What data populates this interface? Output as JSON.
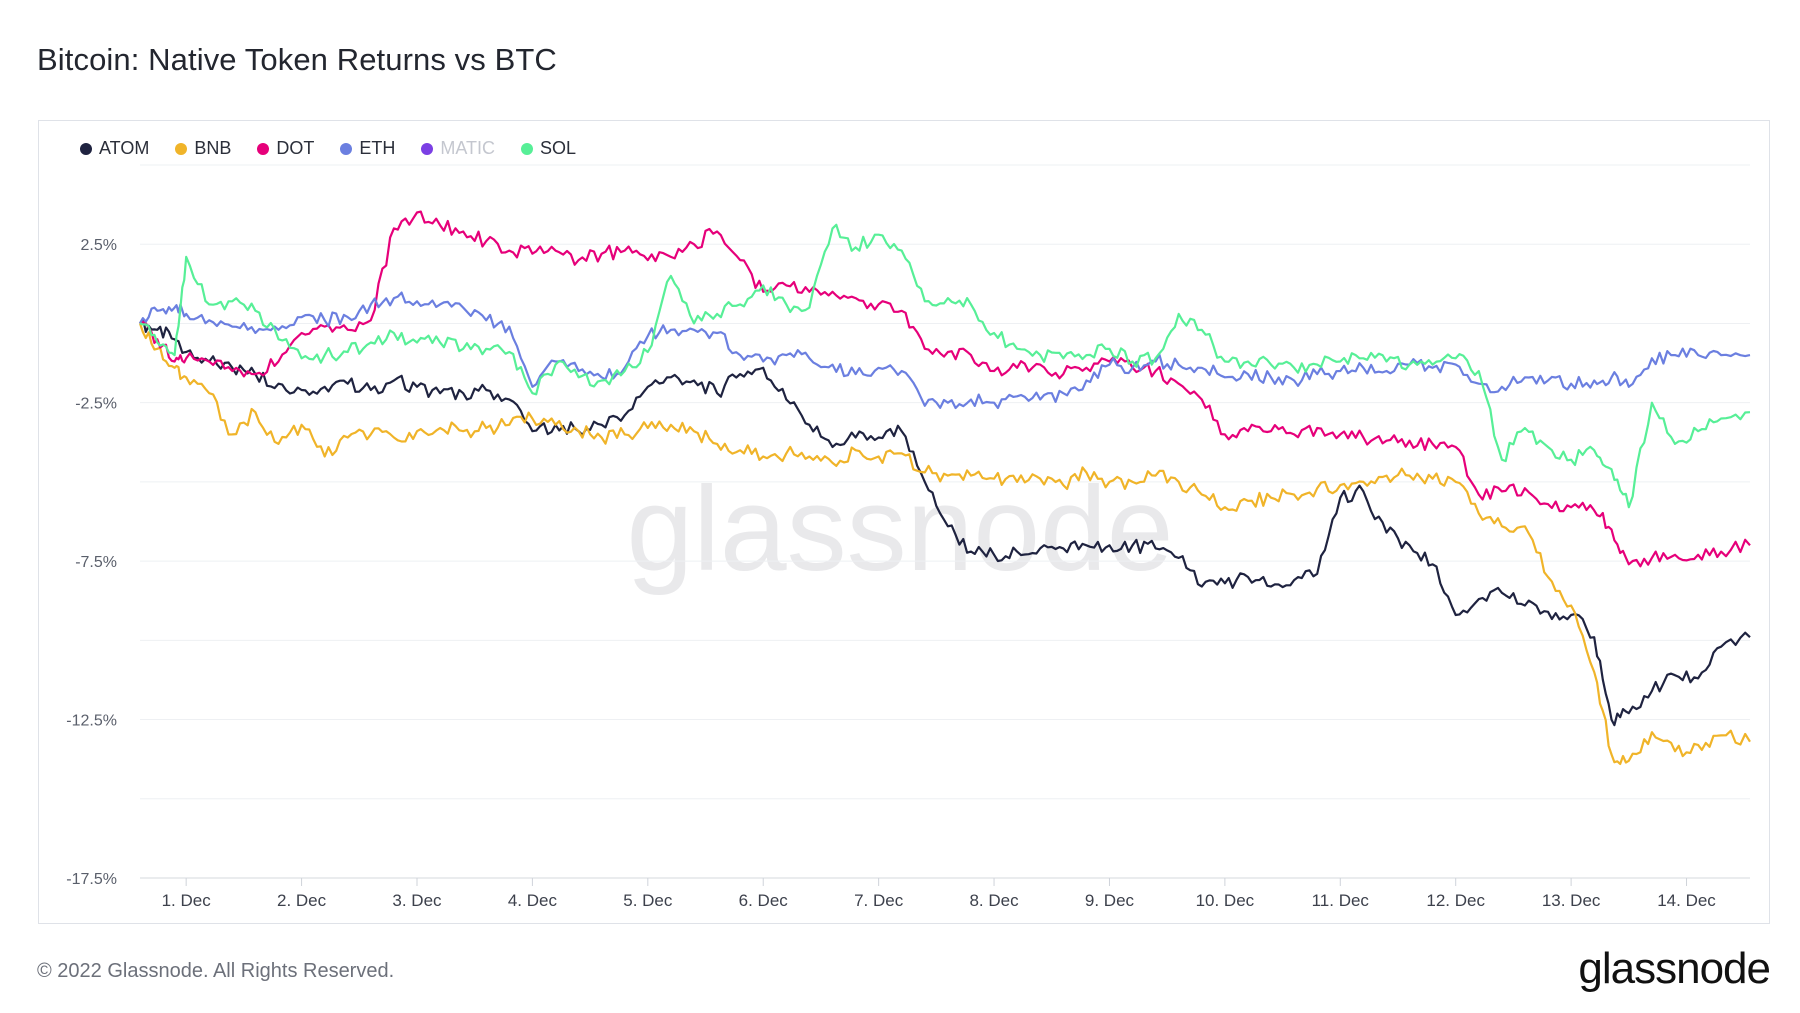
{
  "title": "Bitcoin: Native Token Returns vs BTC",
  "footer": "© 2022 Glassnode. All Rights Reserved.",
  "brand": "glassnode",
  "watermark": "glassnode",
  "legend": [
    {
      "name": "ATOM",
      "color": "#1f2340",
      "active": true
    },
    {
      "name": "BNB",
      "color": "#f0b429",
      "active": true
    },
    {
      "name": "DOT",
      "color": "#e6007a",
      "active": true
    },
    {
      "name": "ETH",
      "color": "#6b7fe0",
      "active": true
    },
    {
      "name": "MATIC",
      "color": "#7b3fe4",
      "active": false
    },
    {
      "name": "SOL",
      "color": "#57ef97",
      "active": true
    }
  ],
  "chart_data": {
    "type": "line",
    "title": "Bitcoin: Native Token Returns vs BTC",
    "x_tick_labels": [
      "1. Dec",
      "2. Dec",
      "3. Dec",
      "4. Dec",
      "5. Dec",
      "6. Dec",
      "7. Dec",
      "8. Dec",
      "9. Dec",
      "10. Dec",
      "11. Dec",
      "12. Dec",
      "13. Dec",
      "14. Dec"
    ],
    "y_tick_labels": [
      "2.5%",
      "-2.5%",
      "-7.5%",
      "-12.5%",
      "-17.5%"
    ],
    "y_ticks": [
      2.5,
      -2.5,
      -7.5,
      -12.5,
      -17.5
    ],
    "xlim": [
      0.6,
      14.55
    ],
    "ylim": [
      -17.5,
      5
    ],
    "x_unit": "day of December",
    "y_unit": "%",
    "grid": true,
    "legend_position": "top-left",
    "series": [
      {
        "name": "ATOM",
        "color": "#1f2340",
        "x": [
          0.6,
          0.75,
          0.9,
          1.0,
          1.2,
          1.4,
          1.6,
          1.8,
          2.0,
          2.2,
          2.4,
          2.6,
          2.8,
          3.0,
          3.2,
          3.4,
          3.6,
          3.8,
          4.0,
          4.2,
          4.4,
          4.6,
          4.8,
          5.0,
          5.2,
          5.4,
          5.6,
          5.8,
          6.0,
          6.2,
          6.4,
          6.6,
          6.8,
          7.0,
          7.2,
          7.4,
          7.6,
          7.8,
          8.0,
          8.2,
          8.4,
          8.6,
          8.8,
          9.0,
          9.2,
          9.4,
          9.6,
          9.8,
          10.0,
          10.2,
          10.4,
          10.6,
          10.8,
          11.0,
          11.2,
          11.4,
          11.6,
          11.8,
          12.0,
          12.2,
          12.4,
          12.6,
          12.8,
          13.0,
          13.2,
          13.35,
          13.5,
          13.7,
          13.9,
          14.1,
          14.3,
          14.55
        ],
        "y": [
          0.0,
          -0.2,
          -0.5,
          -0.9,
          -1.2,
          -1.4,
          -1.6,
          -1.9,
          -2.1,
          -2.0,
          -1.9,
          -2.1,
          -1.8,
          -2.0,
          -2.2,
          -2.2,
          -2.1,
          -2.4,
          -3.4,
          -3.2,
          -3.4,
          -3.2,
          -2.9,
          -2.0,
          -1.7,
          -1.8,
          -2.2,
          -1.6,
          -1.4,
          -2.4,
          -3.2,
          -3.9,
          -3.6,
          -3.6,
          -3.4,
          -5.0,
          -6.4,
          -7.2,
          -7.3,
          -7.2,
          -7.1,
          -7.1,
          -7.0,
          -7.0,
          -7.0,
          -7.1,
          -7.4,
          -8.3,
          -8.2,
          -8.0,
          -8.3,
          -8.1,
          -7.9,
          -5.5,
          -5.3,
          -6.6,
          -7.0,
          -7.6,
          -9.2,
          -8.7,
          -8.5,
          -8.9,
          -9.1,
          -9.2,
          -9.9,
          -12.5,
          -12.3,
          -11.6,
          -11.1,
          -11.2,
          -10.2,
          -9.9
        ]
      },
      {
        "name": "BNB",
        "color": "#f0b429",
        "x": [
          0.6,
          0.75,
          0.9,
          1.0,
          1.2,
          1.4,
          1.6,
          1.8,
          2.0,
          2.2,
          2.4,
          2.6,
          2.8,
          3.0,
          3.2,
          3.4,
          3.6,
          3.8,
          4.0,
          4.2,
          4.4,
          4.6,
          4.8,
          5.0,
          5.2,
          5.4,
          5.6,
          5.8,
          6.0,
          6.2,
          6.4,
          6.6,
          6.8,
          7.0,
          7.2,
          7.4,
          7.6,
          7.8,
          8.0,
          8.2,
          8.4,
          8.6,
          8.8,
          9.0,
          9.2,
          9.4,
          9.6,
          9.8,
          10.0,
          10.2,
          10.4,
          10.6,
          10.8,
          11.0,
          11.2,
          11.4,
          11.6,
          11.8,
          12.0,
          12.2,
          12.4,
          12.6,
          12.8,
          13.0,
          13.2,
          13.35,
          13.5,
          13.7,
          13.9,
          14.1,
          14.3,
          14.55
        ],
        "y": [
          0.0,
          -0.8,
          -1.4,
          -1.7,
          -2.2,
          -3.5,
          -2.8,
          -3.8,
          -3.2,
          -4.2,
          -3.6,
          -3.5,
          -3.6,
          -3.4,
          -3.3,
          -3.4,
          -3.3,
          -3.2,
          -3.0,
          -3.2,
          -3.4,
          -3.6,
          -3.5,
          -3.3,
          -3.2,
          -3.4,
          -3.8,
          -4.0,
          -4.2,
          -4.1,
          -4.2,
          -4.4,
          -4.0,
          -4.2,
          -4.1,
          -4.7,
          -4.8,
          -4.8,
          -4.9,
          -5.0,
          -4.9,
          -5.1,
          -4.7,
          -5.0,
          -5.0,
          -4.8,
          -5.0,
          -5.4,
          -5.8,
          -5.6,
          -5.5,
          -5.4,
          -5.2,
          -5.1,
          -5.0,
          -4.8,
          -4.8,
          -4.9,
          -5.0,
          -6.0,
          -6.4,
          -6.4,
          -8.0,
          -8.9,
          -11.0,
          -13.6,
          -13.8,
          -12.9,
          -13.5,
          -13.3,
          -13.0,
          -13.2
        ]
      },
      {
        "name": "DOT",
        "color": "#e6007a",
        "x": [
          0.6,
          0.75,
          0.9,
          1.0,
          1.2,
          1.4,
          1.6,
          1.8,
          2.0,
          2.2,
          2.4,
          2.6,
          2.8,
          3.0,
          3.2,
          3.4,
          3.6,
          3.8,
          4.0,
          4.2,
          4.4,
          4.6,
          4.8,
          5.0,
          5.2,
          5.4,
          5.6,
          5.8,
          6.0,
          6.2,
          6.4,
          6.6,
          6.8,
          7.0,
          7.2,
          7.4,
          7.6,
          7.8,
          8.0,
          8.2,
          8.4,
          8.6,
          8.8,
          9.0,
          9.2,
          9.4,
          9.6,
          9.8,
          10.0,
          10.2,
          10.4,
          10.6,
          10.8,
          11.0,
          11.2,
          11.4,
          11.6,
          11.8,
          12.0,
          12.2,
          12.4,
          12.6,
          12.8,
          13.0,
          13.2,
          13.35,
          13.5,
          13.7,
          13.9,
          14.1,
          14.3,
          14.55
        ],
        "y": [
          0.0,
          -0.5,
          -1.2,
          -1.1,
          -1.2,
          -1.5,
          -1.6,
          -1.2,
          -0.3,
          -0.1,
          -0.2,
          0.1,
          3.0,
          3.5,
          3.1,
          2.9,
          2.6,
          2.3,
          2.2,
          2.3,
          2.0,
          2.2,
          2.3,
          2.0,
          2.1,
          2.5,
          2.9,
          2.0,
          1.0,
          1.2,
          1.0,
          1.0,
          0.8,
          0.6,
          0.4,
          -0.8,
          -0.9,
          -1.0,
          -1.5,
          -1.4,
          -1.3,
          -1.6,
          -1.4,
          -1.2,
          -1.4,
          -1.5,
          -1.9,
          -2.4,
          -3.5,
          -3.4,
          -3.4,
          -3.5,
          -3.3,
          -3.5,
          -3.6,
          -3.7,
          -3.7,
          -3.8,
          -3.9,
          -5.4,
          -5.3,
          -5.2,
          -5.7,
          -5.8,
          -5.9,
          -6.5,
          -7.6,
          -7.4,
          -7.3,
          -7.3,
          -7.2,
          -7.0
        ]
      },
      {
        "name": "ETH",
        "color": "#6b7fe0",
        "x": [
          0.6,
          0.75,
          0.9,
          1.0,
          1.2,
          1.4,
          1.6,
          1.8,
          2.0,
          2.2,
          2.4,
          2.6,
          2.8,
          3.0,
          3.2,
          3.4,
          3.6,
          3.8,
          4.0,
          4.2,
          4.4,
          4.6,
          4.8,
          5.0,
          5.2,
          5.4,
          5.6,
          5.8,
          6.0,
          6.2,
          6.4,
          6.6,
          6.8,
          7.0,
          7.2,
          7.4,
          7.6,
          7.8,
          8.0,
          8.2,
          8.4,
          8.6,
          8.8,
          9.0,
          9.2,
          9.4,
          9.6,
          9.8,
          10.0,
          10.2,
          10.4,
          10.6,
          10.8,
          11.0,
          11.2,
          11.4,
          11.6,
          11.8,
          12.0,
          12.2,
          12.4,
          12.6,
          12.8,
          13.0,
          13.2,
          13.35,
          13.5,
          13.7,
          13.9,
          14.1,
          14.3,
          14.55
        ],
        "y": [
          0.0,
          0.4,
          0.5,
          0.3,
          0.1,
          -0.1,
          -0.3,
          -0.2,
          0.2,
          0.1,
          0.2,
          0.6,
          0.8,
          0.7,
          0.6,
          0.5,
          0.1,
          -0.1,
          -2.0,
          -1.2,
          -1.5,
          -1.7,
          -1.4,
          -0.4,
          -0.2,
          -0.2,
          -0.3,
          -1.0,
          -1.2,
          -1.0,
          -1.1,
          -1.3,
          -1.6,
          -1.4,
          -1.5,
          -2.6,
          -2.5,
          -2.4,
          -2.5,
          -2.3,
          -2.4,
          -2.2,
          -1.8,
          -1.3,
          -1.4,
          -1.2,
          -1.3,
          -1.4,
          -1.7,
          -1.6,
          -1.7,
          -1.8,
          -1.6,
          -1.5,
          -1.4,
          -1.5,
          -1.3,
          -1.4,
          -1.3,
          -1.9,
          -2.0,
          -1.7,
          -1.8,
          -1.9,
          -1.8,
          -1.7,
          -2.0,
          -1.1,
          -1.0,
          -1.0,
          -1.0,
          -1.0
        ]
      },
      {
        "name": "SOL",
        "color": "#57ef97",
        "x": [
          0.6,
          0.75,
          0.9,
          1.0,
          1.2,
          1.4,
          1.6,
          1.8,
          2.0,
          2.2,
          2.4,
          2.6,
          2.8,
          3.0,
          3.2,
          3.4,
          3.6,
          3.8,
          4.0,
          4.2,
          4.4,
          4.6,
          4.8,
          5.0,
          5.2,
          5.4,
          5.6,
          5.8,
          6.0,
          6.2,
          6.4,
          6.6,
          6.8,
          7.0,
          7.2,
          7.4,
          7.6,
          7.8,
          8.0,
          8.2,
          8.4,
          8.6,
          8.8,
          9.0,
          9.2,
          9.4,
          9.6,
          9.8,
          10.0,
          10.2,
          10.4,
          10.6,
          10.8,
          11.0,
          11.2,
          11.4,
          11.6,
          11.8,
          12.0,
          12.2,
          12.4,
          12.6,
          12.8,
          13.0,
          13.2,
          13.35,
          13.5,
          13.7,
          13.9,
          14.1,
          14.3,
          14.55
        ],
        "y": [
          0.0,
          -0.6,
          -1.0,
          2.1,
          0.6,
          0.7,
          0.4,
          -0.5,
          -1.1,
          -1.0,
          -0.9,
          -0.6,
          -0.3,
          -0.6,
          -0.6,
          -0.8,
          -0.8,
          -0.9,
          -2.2,
          -1.3,
          -1.7,
          -1.8,
          -1.5,
          -0.9,
          1.5,
          0.0,
          0.3,
          0.6,
          1.2,
          0.6,
          0.5,
          3.0,
          2.4,
          2.8,
          2.3,
          0.7,
          0.8,
          0.6,
          -0.3,
          -0.8,
          -1.0,
          -1.1,
          -1.0,
          -0.8,
          -1.2,
          -1.1,
          0.3,
          -0.2,
          -1.2,
          -1.2,
          -1.3,
          -1.4,
          -1.3,
          -1.2,
          -1.1,
          -1.2,
          -1.3,
          -1.3,
          -1.1,
          -1.5,
          -4.3,
          -3.3,
          -3.9,
          -4.3,
          -4.0,
          -4.6,
          -5.8,
          -2.5,
          -3.8,
          -3.4,
          -3.0,
          -2.8
        ]
      }
    ]
  }
}
